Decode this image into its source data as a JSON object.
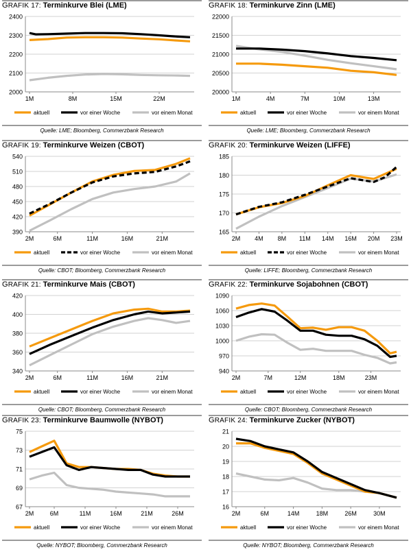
{
  "colors": {
    "aktuell": "#f59a0e",
    "woche": "#000000",
    "monat": "#c0c0c0",
    "grid": "#d2d2d2",
    "frame": "#9a9a9a"
  },
  "charts": [
    {
      "id": "17",
      "prefix": "Grafik 17:",
      "title": "Terminkurve Blei (LME)",
      "source": "Quelle: LME; Bloomberg, Commerzbank Research",
      "legend": [
        "aktuell",
        "vor einer Woche",
        "vor einem Monat"
      ],
      "chart_data": {
        "type": "line",
        "x_ticks": [
          "1M",
          "8M",
          "15M",
          "22M"
        ],
        "x_tick_index": [
          1,
          8,
          15,
          22
        ],
        "x_range": [
          1,
          27
        ],
        "ylim": [
          2000,
          2400
        ],
        "y_ticks": [
          2000,
          2100,
          2200,
          2300,
          2400
        ],
        "series": [
          {
            "name": "aktuell",
            "x": [
              1,
              4,
              7,
              10,
              13,
              16,
              19,
              22,
              25,
              27
            ],
            "values": [
              2275,
              2280,
              2288,
              2290,
              2290,
              2288,
              2283,
              2279,
              2272,
              2268
            ]
          },
          {
            "name": "vor einer Woche",
            "x": [
              1,
              2,
              4,
              7,
              10,
              13,
              16,
              19,
              22,
              25,
              27
            ],
            "values": [
              2312,
              2305,
              2306,
              2309,
              2312,
              2312,
              2311,
              2306,
              2300,
              2293,
              2290
            ]
          },
          {
            "name": "vor einem Monat",
            "x": [
              1,
              4,
              7,
              10,
              13,
              16,
              19,
              22,
              25,
              27
            ],
            "values": [
              2062,
              2075,
              2085,
              2092,
              2095,
              2093,
              2090,
              2088,
              2087,
              2085
            ]
          }
        ]
      }
    },
    {
      "id": "18",
      "prefix": "Grafik 18:",
      "title": "Terminkurve Zinn (LME)",
      "source": "Quelle: LME; Bloomberg, Commerzbank Research",
      "legend": [
        "aktuell",
        "vor einer Woche",
        "vor einem Monat"
      ],
      "chart_data": {
        "type": "line",
        "x_ticks": [
          "1M",
          "4M",
          "7M",
          "10M",
          "13M"
        ],
        "x_tick_index": [
          1,
          4,
          7,
          10,
          13
        ],
        "x_range": [
          1,
          15
        ],
        "ylim": [
          20000,
          22000
        ],
        "y_ticks": [
          20000,
          20500,
          21000,
          21500,
          22000
        ],
        "series": [
          {
            "name": "aktuell",
            "x": [
              1,
              3,
              5,
              7,
              9,
              11,
              13,
              15
            ],
            "values": [
              20750,
              20750,
              20720,
              20680,
              20640,
              20560,
              20520,
              20450
            ]
          },
          {
            "name": "vor einer Woche",
            "x": [
              1,
              3,
              5,
              7,
              9,
              11,
              13,
              15
            ],
            "values": [
              21150,
              21150,
              21120,
              21080,
              21020,
              20950,
              20900,
              20840
            ]
          },
          {
            "name": "vor einem Monat",
            "x": [
              1,
              3,
              5,
              7,
              9,
              11,
              13,
              15
            ],
            "values": [
              21220,
              21130,
              21060,
              20960,
              20850,
              20760,
              20680,
              20600
            ]
          }
        ]
      }
    },
    {
      "id": "19",
      "prefix": "Grafik 19:",
      "title": "Terminkurve Weizen (CBOT)",
      "source": "Quelle: CBOT; Bloomberg, Commerzbank Research",
      "legend": [
        "aktuell",
        "vor einer Woche",
        "vor einem Monat"
      ],
      "chart_data": {
        "type": "line",
        "x_ticks": [
          "2M",
          "6M",
          "11M",
          "16M",
          "21M"
        ],
        "x_tick_index": [
          2,
          6,
          11,
          16,
          21
        ],
        "x_range": [
          2,
          25
        ],
        "ylim": [
          390,
          540
        ],
        "y_ticks": [
          390,
          420,
          450,
          480,
          510,
          540
        ],
        "series": [
          {
            "name": "aktuell",
            "x": [
              2,
              5,
              8,
              11,
              14,
              17,
              20,
              23,
              25
            ],
            "values": [
              422,
              445,
              468,
              490,
              503,
              511,
              513,
              525,
              536
            ]
          },
          {
            "name": "vor einer Woche",
            "x": [
              2,
              5,
              8,
              11,
              14,
              17,
              20,
              23,
              25
            ],
            "values": [
              426,
              446,
              468,
              488,
              500,
              506,
              509,
              520,
              530
            ]
          },
          {
            "name": "vor einem Monat",
            "x": [
              2,
              5,
              8,
              11,
              14,
              17,
              20,
              23,
              25
            ],
            "values": [
              392,
              413,
              435,
              455,
              468,
              475,
              480,
              490,
              506
            ]
          }
        ]
      }
    },
    {
      "id": "20",
      "prefix": "Grafik 20:",
      "title": "Terminkurve Weizen (LIFFE)",
      "source": "Quelle: LIFFE; Bloomberg, Commerzbank Research",
      "legend": [
        "aktuell",
        "vor einer Woche",
        "vor einem Monat"
      ],
      "chart_data": {
        "type": "line",
        "x_ticks": [
          "2M",
          "4M",
          "8M",
          "11M",
          "14M",
          "16M",
          "20M",
          "23M"
        ],
        "x_tick_index": [
          0,
          1,
          2,
          3,
          4,
          5,
          6,
          7
        ],
        "x_range": [
          0,
          7
        ],
        "ylim": [
          165,
          185
        ],
        "y_ticks": [
          165,
          170,
          175,
          180,
          185
        ],
        "series": [
          {
            "name": "aktuell",
            "x": [
              0,
              1,
              2,
              3,
              4,
              5,
              6,
              7
            ],
            "values": [
              169.6,
              171.5,
              172.6,
              174.5,
              177.3,
              180.0,
              179.0,
              181.7
            ]
          },
          {
            "name": "vor einer Woche",
            "x": [
              0,
              1,
              2,
              3,
              4,
              5,
              6,
              6.5,
              7
            ],
            "values": [
              169.6,
              171.6,
              172.8,
              174.8,
              177.0,
              179.2,
              178.2,
              179.5,
              182.2
            ]
          },
          {
            "name": "vor einem Monat",
            "x": [
              0,
              1,
              2,
              3,
              4,
              5,
              6,
              7
            ],
            "values": [
              165.8,
              169.0,
              171.8,
              174.2,
              176.6,
              179.1,
              178.3,
              180.2
            ]
          }
        ]
      }
    },
    {
      "id": "21",
      "prefix": "Grafik 21:",
      "title": "Terminkurve Mais (CBOT)",
      "source": "Quelle: CBOT; Bloomberg, Commerzbank Research",
      "legend": [
        "aktuell",
        "vor einer Woche",
        "vor einem Monat"
      ],
      "chart_data": {
        "type": "line",
        "x_ticks": [
          "2M",
          "6M",
          "11M",
          "16M",
          "21M"
        ],
        "x_tick_index": [
          2,
          6,
          11,
          16,
          21
        ],
        "x_range": [
          2,
          25
        ],
        "ylim": [
          340,
          420
        ],
        "y_ticks": [
          340,
          360,
          380,
          400,
          420
        ],
        "series": [
          {
            "name": "aktuell",
            "x": [
              2,
              5,
              8,
              11,
              14,
              17,
              19,
              21,
              23,
              25
            ],
            "values": [
              366,
              375,
              384,
              393,
              401,
              405,
              406,
              403,
              403,
              404
            ]
          },
          {
            "name": "vor einer Woche",
            "x": [
              2,
              5,
              8,
              11,
              14,
              17,
              19,
              21,
              23,
              25
            ],
            "values": [
              358,
              368,
              377,
              386,
              394,
              400,
              403,
              401,
              402,
              403
            ]
          },
          {
            "name": "vor einem Monat",
            "x": [
              2,
              5,
              8,
              11,
              14,
              17,
              19,
              21,
              23,
              25
            ],
            "values": [
              346,
              357,
              368,
              379,
              387,
              393,
              396,
              394,
              391,
              393
            ]
          }
        ]
      }
    },
    {
      "id": "22",
      "prefix": "Grafik 22:",
      "title": "Terminkurve Sojabohnen (CBOT)",
      "source": "Quelle: CBOT; Bloomberg, Commerzbank Research",
      "legend": [
        "aktuell",
        "vor einer Woche",
        "vor einem Monat"
      ],
      "chart_data": {
        "type": "line",
        "x_ticks": [
          "2M",
          "7M",
          "12M",
          "18M",
          "23M"
        ],
        "x_tick_index": [
          2,
          7,
          12,
          18,
          23
        ],
        "x_range": [
          2,
          27
        ],
        "ylim": [
          940,
          1090
        ],
        "y_ticks": [
          940,
          970,
          1000,
          1030,
          1060,
          1090
        ],
        "series": [
          {
            "name": "aktuell",
            "x": [
              2,
              4,
              6,
              8,
              10,
              12,
              14,
              16,
              18,
              20,
              22,
              24,
              26,
              27
            ],
            "values": [
              1064,
              1071,
              1074,
              1070,
              1048,
              1025,
              1026,
              1022,
              1027,
              1027,
              1020,
              1000,
              975,
              978
            ]
          },
          {
            "name": "vor einer Woche",
            "x": [
              2,
              4,
              6,
              8,
              10,
              12,
              14,
              16,
              18,
              20,
              22,
              24,
              26,
              27
            ],
            "values": [
              1047,
              1056,
              1063,
              1058,
              1040,
              1020,
              1020,
              1012,
              1010,
              1010,
              1003,
              990,
              968,
              970
            ]
          },
          {
            "name": "vor einem Monat",
            "x": [
              2,
              4,
              6,
              8,
              10,
              12,
              14,
              16,
              18,
              20,
              22,
              24,
              26,
              27
            ],
            "values": [
              1000,
              1008,
              1013,
              1012,
              996,
              982,
              984,
              980,
              980,
              980,
              972,
              966,
              955,
              957
            ]
          }
        ]
      }
    },
    {
      "id": "23",
      "prefix": "Grafik 23:",
      "title": "Terminkurve Baumwolle (NYBOT)",
      "source": "Quelle: NYBOT; Bloomberg, Commerzbank Research",
      "legend": [
        "aktuell",
        "vor einer Woche",
        "vor einem Monat"
      ],
      "chart_data": {
        "type": "line",
        "x_ticks": [
          "2M",
          "6M",
          "11M",
          "16M",
          "21M",
          "26M"
        ],
        "x_tick_index": [
          2,
          6,
          11,
          16,
          21,
          26
        ],
        "x_range": [
          2,
          28
        ],
        "ylim": [
          67,
          75
        ],
        "y_ticks": [
          67,
          69,
          71,
          73,
          75
        ],
        "series": [
          {
            "name": "aktuell",
            "x": [
              2,
              4,
              6,
              8,
              10,
              12,
              14,
              16,
              18,
              20,
              22,
              24,
              26,
              28
            ],
            "values": [
              72.8,
              73.4,
              74.0,
              71.6,
              71.2,
              71.2,
              71.1,
              71.0,
              71.0,
              70.9,
              70.5,
              70.3,
              70.2,
              70.2
            ]
          },
          {
            "name": "vor einer Woche",
            "x": [
              2,
              4,
              6,
              8,
              10,
              12,
              14,
              16,
              18,
              20,
              22,
              24,
              26,
              28
            ],
            "values": [
              72.3,
              72.8,
              73.3,
              71.4,
              70.9,
              71.2,
              71.1,
              71.0,
              70.9,
              70.9,
              70.4,
              70.2,
              70.2,
              70.2
            ]
          },
          {
            "name": "vor einem Monat",
            "x": [
              2,
              4,
              6,
              8,
              10,
              12,
              14,
              16,
              18,
              20,
              22,
              24,
              26,
              28
            ],
            "values": [
              69.9,
              70.3,
              70.6,
              69.3,
              69.0,
              68.9,
              68.8,
              68.6,
              68.5,
              68.4,
              68.3,
              68.1,
              68.1,
              68.1
            ]
          }
        ]
      }
    },
    {
      "id": "24",
      "prefix": "Grafik 24:",
      "title": "Terminkurve Zucker (NYBOT)",
      "source": "Quelle: NYBOT; Bloomberg, Commerzbank Research",
      "legend": [
        "aktuell",
        "vor einer Woche",
        "vor einem Monat"
      ],
      "chart_data": {
        "type": "line",
        "x_ticks": [
          "2M",
          "6M",
          "14M",
          "18M",
          "26M",
          "30M"
        ],
        "x_tick_index": [
          0,
          1,
          2,
          3,
          4,
          5
        ],
        "x_range": [
          0,
          5.6
        ],
        "ylim": [
          16,
          21
        ],
        "y_ticks": [
          16,
          17,
          18,
          19,
          20,
          21
        ],
        "series": [
          {
            "name": "aktuell",
            "x": [
              0,
              0.5,
              1,
              1.5,
              2,
              2.5,
              3,
              3.5,
              4,
              4.5,
              5,
              5.6
            ],
            "values": [
              20.2,
              20.2,
              19.9,
              19.7,
              19.5,
              18.9,
              18.2,
              17.8,
              17.4,
              17.0,
              16.9,
              16.6
            ]
          },
          {
            "name": "vor einer Woche",
            "x": [
              0,
              0.5,
              1,
              1.5,
              2,
              2.5,
              3,
              3.5,
              4,
              4.5,
              5,
              5.6
            ],
            "values": [
              20.5,
              20.35,
              20.0,
              19.8,
              19.6,
              19.0,
              18.3,
              17.9,
              17.5,
              17.1,
              16.9,
              16.6
            ]
          },
          {
            "name": "vor einem Monat",
            "x": [
              0,
              0.5,
              1,
              1.5,
              2,
              2.5,
              3,
              3.5,
              4,
              4.5,
              5,
              5.6
            ],
            "values": [
              18.2,
              18.0,
              17.8,
              17.75,
              17.9,
              17.6,
              17.2,
              17.1,
              17.1,
              17.0,
              16.9,
              16.6
            ]
          }
        ]
      }
    }
  ]
}
